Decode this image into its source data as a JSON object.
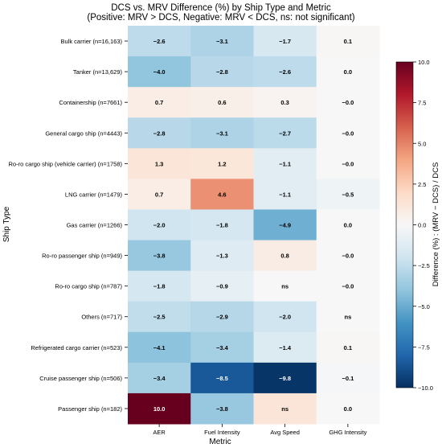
{
  "chart_data": {
    "type": "heatmap",
    "title": "DCS vs. MRV Difference (%) by Ship Type and Metric",
    "subtitle": "(Positive: MRV > DCS, Negative: MRV < DCS, ns: not significant)",
    "xlabel": "Metric",
    "ylabel": "Ship Type",
    "columns": [
      "AER",
      "Fuel Intensity",
      "Avg Speed",
      "GHG Intensity"
    ],
    "rows": [
      "Bulk carrier (n=16,163)",
      "Tanker (n=13,629)",
      "Containership (n=7661)",
      "General cargo ship (n=4443)",
      "Ro-ro cargo ship (vehicle carrier) (n=1758)",
      "LNG carrier (n=1479)",
      "Gas carrier (n=1266)",
      "Ro-ro passenger ship (n=949)",
      "Ro-ro cargo ship (n=787)",
      "Others (n=717)",
      "Refrigerated cargo carrier (n=523)",
      "Cruise passenger ship (n=506)",
      "Passenger ship (n=182)"
    ],
    "values": [
      [
        -2.6,
        -3.1,
        -1.7,
        0.1
      ],
      [
        -4.0,
        -2.8,
        -2.6,
        0.0
      ],
      [
        0.7,
        0.6,
        0.3,
        -0.0
      ],
      [
        -2.8,
        -3.1,
        -2.7,
        -0.0
      ],
      [
        1.3,
        1.2,
        -1.1,
        -0.0
      ],
      [
        0.7,
        4.6,
        -1.1,
        -0.5
      ],
      [
        -2.0,
        -1.8,
        -4.9,
        0.0
      ],
      [
        -3.8,
        -1.3,
        0.8,
        -0.0
      ],
      [
        -1.8,
        -0.9,
        null,
        -0.0
      ],
      [
        -2.5,
        -2.9,
        -2.0,
        null
      ],
      [
        -4.1,
        -3.4,
        -1.4,
        0.1
      ],
      [
        -3.4,
        -8.5,
        -9.8,
        -0.1
      ],
      [
        10.0,
        -3.8,
        null,
        0.0
      ]
    ],
    "cell_labels": [
      [
        "−2.6",
        "−3.1",
        "−1.7",
        "0.1"
      ],
      [
        "−4.0",
        "−2.8",
        "−2.6",
        "0.0"
      ],
      [
        "0.7",
        "0.6",
        "0.3",
        "−0.0"
      ],
      [
        "−2.8",
        "−3.1",
        "−2.7",
        "−0.0"
      ],
      [
        "1.3",
        "1.2",
        "−1.1",
        "−0.0"
      ],
      [
        "0.7",
        "4.6",
        "−1.1",
        "−0.5"
      ],
      [
        "−2.0",
        "−1.8",
        "−4.9",
        "0.0"
      ],
      [
        "−3.8",
        "−1.3",
        "0.8",
        "−0.0"
      ],
      [
        "−1.8",
        "−0.9",
        "ns",
        "−0.0"
      ],
      [
        "−2.5",
        "−2.9",
        "−2.0",
        "ns"
      ],
      [
        "−4.1",
        "−3.4",
        "−1.4",
        "0.1"
      ],
      [
        "−3.4",
        "−8.5",
        "−9.8",
        "−0.1"
      ],
      [
        "10.0",
        "−3.8",
        "ns",
        "0.0"
      ]
    ],
    "ns_fill": [
      [
        null,
        null,
        null,
        null
      ],
      [
        null,
        null,
        null,
        null
      ],
      [
        null,
        null,
        null,
        null
      ],
      [
        null,
        null,
        null,
        null
      ],
      [
        null,
        null,
        null,
        null
      ],
      [
        null,
        null,
        null,
        null
      ],
      [
        null,
        null,
        null,
        null
      ],
      [
        null,
        null,
        null,
        null
      ],
      [
        null,
        null,
        0.0,
        null
      ],
      [
        null,
        null,
        null,
        0.0
      ],
      [
        null,
        null,
        null,
        null
      ],
      [
        null,
        null,
        null,
        null
      ],
      [
        null,
        null,
        1.3,
        null
      ]
    ],
    "colorbar": {
      "label": "Difference (%) : (MRV − DCS) / DCS",
      "vmin": -10,
      "vmax": 10,
      "ticks": [
        10.0,
        7.5,
        5.0,
        2.5,
        0.0,
        -2.5,
        -5.0,
        -7.5,
        -10.0
      ],
      "tick_labels": [
        "10.0",
        "7.5",
        "5.0",
        "2.5",
        "0.0",
        "−2.5",
        "−5.0",
        "−7.5",
        "−10.0"
      ],
      "colormap": "RdBu_r"
    }
  }
}
